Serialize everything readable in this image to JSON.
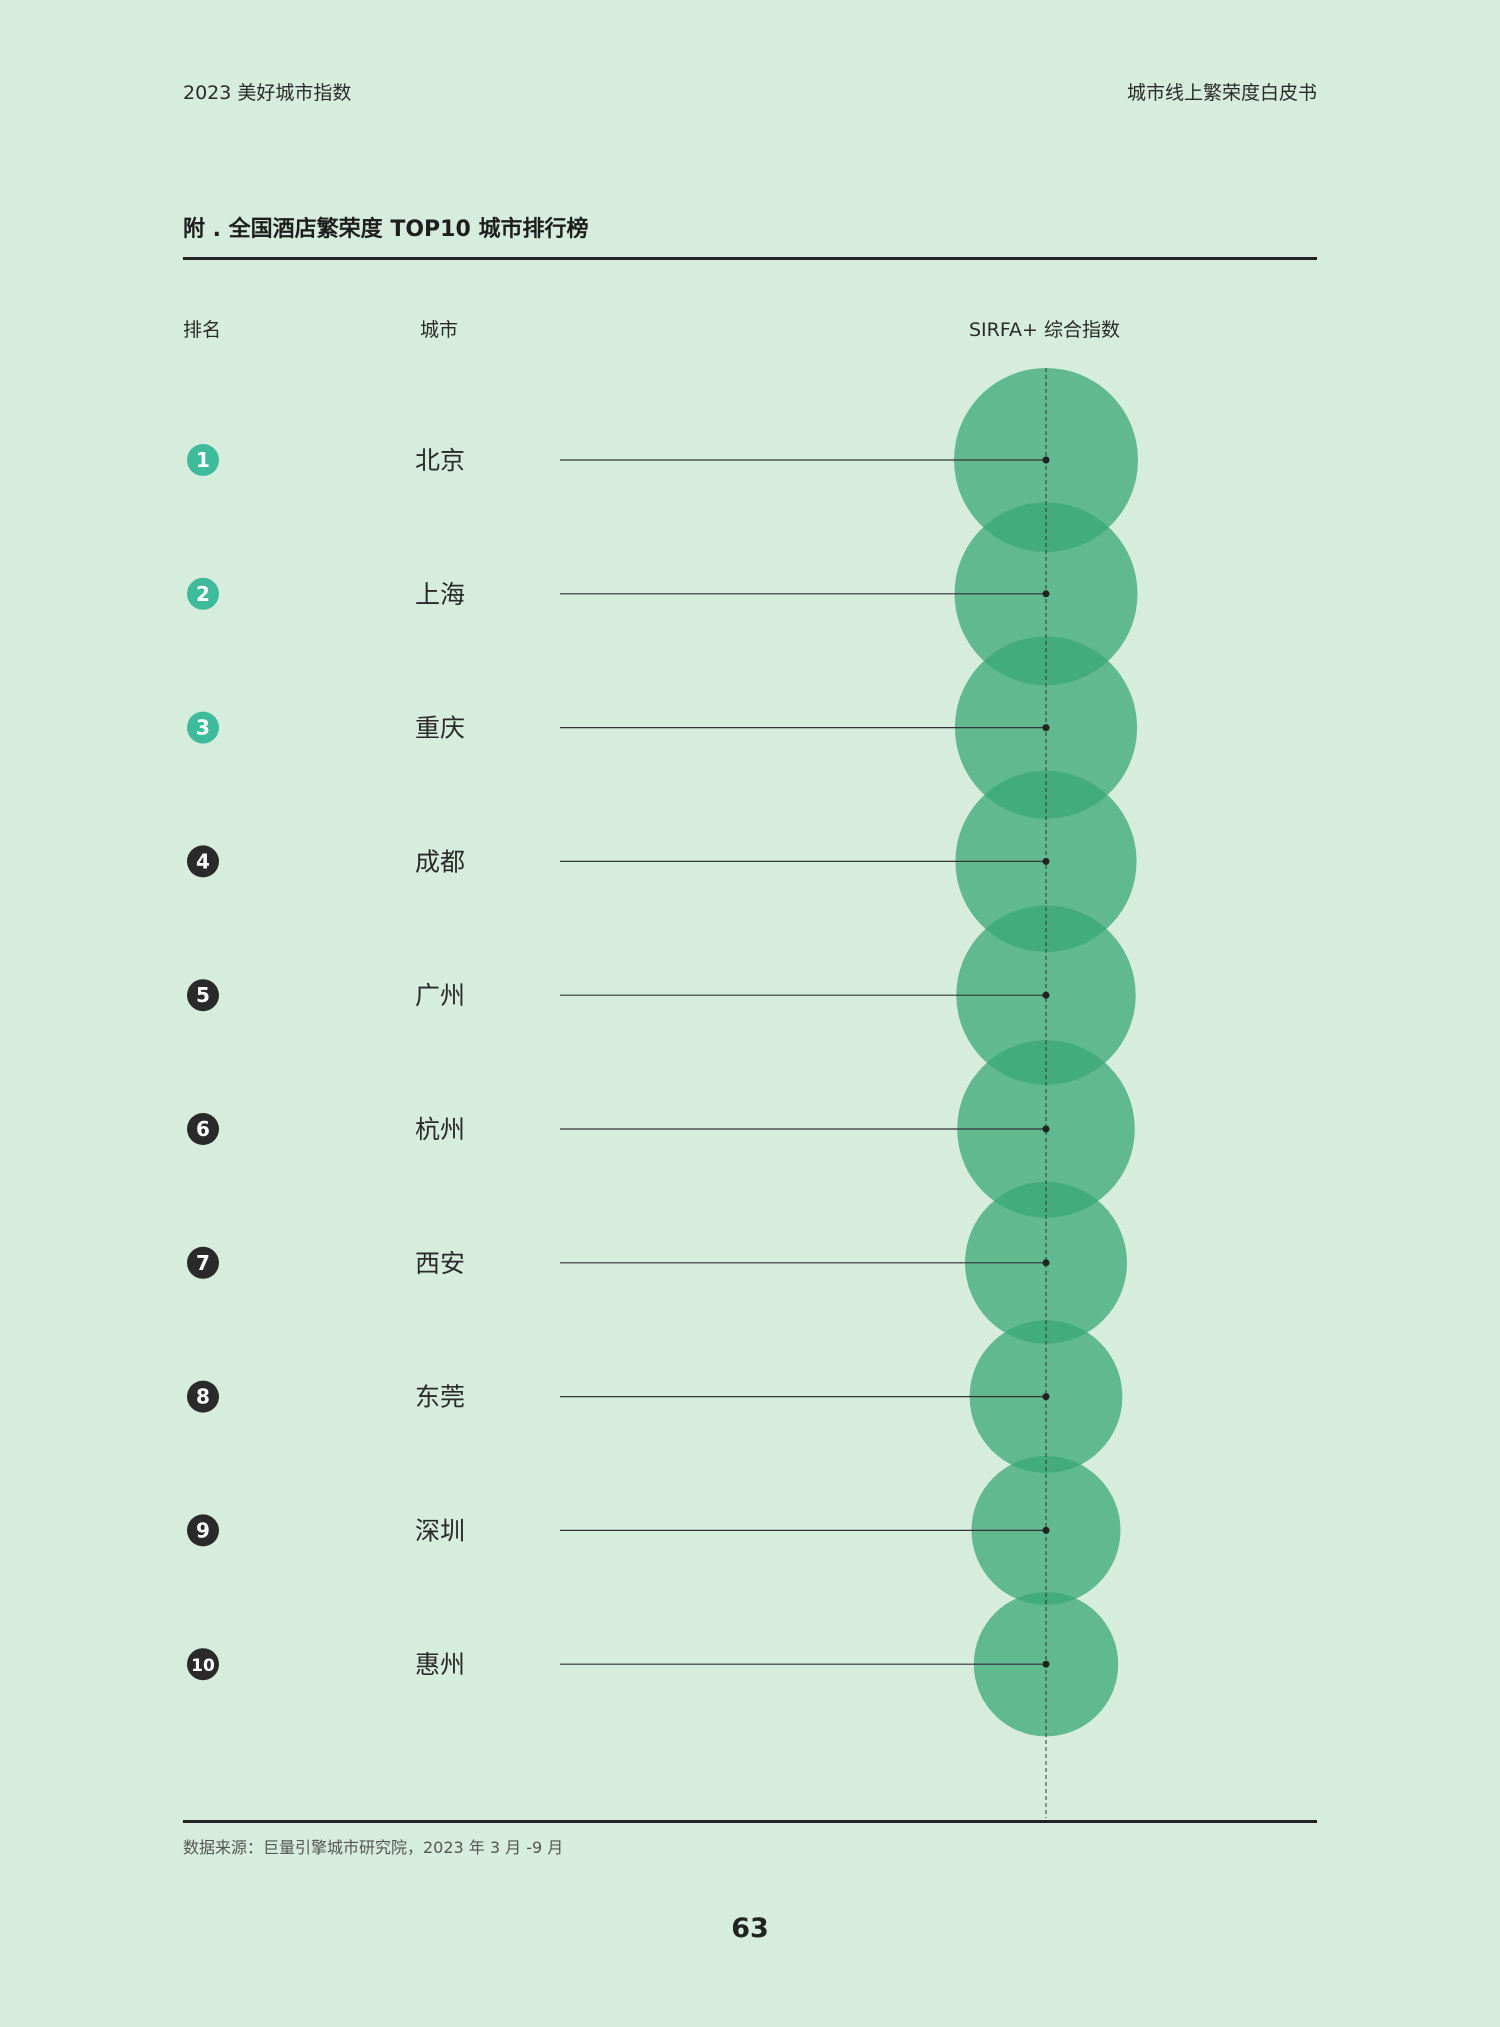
{
  "header": {
    "left": "2023 美好城市指数",
    "right": "城市线上繁荣度白皮书"
  },
  "chart_data": {
    "type": "bubble-ranking",
    "title": "附 . 全国酒店繁荣度 TOP10 城市排行榜",
    "columns": {
      "rank": "排名",
      "city": "城市",
      "index": "SIRFA+ 综合指数"
    },
    "rows": [
      {
        "rank": 1,
        "rank_label": "1",
        "city": "北京",
        "relative_index": 1.0
      },
      {
        "rank": 2,
        "rank_label": "2",
        "city": "上海",
        "relative_index": 0.995
      },
      {
        "rank": 3,
        "rank_label": "3",
        "city": "重庆",
        "relative_index": 0.99
      },
      {
        "rank": 4,
        "rank_label": "4",
        "city": "成都",
        "relative_index": 0.985
      },
      {
        "rank": 5,
        "rank_label": "5",
        "city": "广州",
        "relative_index": 0.975
      },
      {
        "rank": 6,
        "rank_label": "6",
        "city": "杭州",
        "relative_index": 0.965
      },
      {
        "rank": 7,
        "rank_label": "7",
        "city": "西安",
        "relative_index": 0.88
      },
      {
        "rank": 8,
        "rank_label": "8",
        "city": "东莞",
        "relative_index": 0.83
      },
      {
        "rank": 9,
        "rank_label": "9",
        "city": "深圳",
        "relative_index": 0.81
      },
      {
        "rank": 10,
        "rank_label": "10",
        "city": "惠州",
        "relative_index": 0.785
      }
    ],
    "colors": {
      "bubble": "#3aa876",
      "top_rank_badge": "#3dbb9a",
      "rank_badge": "#2a2a2a",
      "background": "#d6ecdd"
    }
  },
  "footer": {
    "source": "数据来源：巨量引擎城市研究院，2023 年 3 月 -9 月",
    "page_number": "63"
  }
}
